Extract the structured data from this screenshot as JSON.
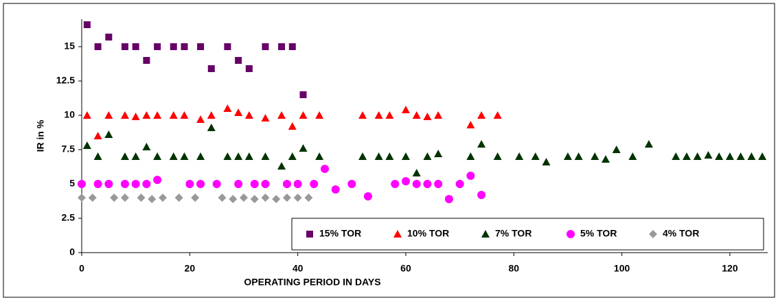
{
  "chart_data": {
    "type": "scatter",
    "xlabel": "OPERATING PERIOD IN DAYS",
    "ylabel": "IR in %",
    "xlim": [
      0,
      127
    ],
    "xticks": [
      0,
      20,
      40,
      60,
      80,
      100,
      120
    ],
    "ylim": [
      0,
      17
    ],
    "yticks": [
      0,
      2.5,
      5,
      7.5,
      10,
      12.5,
      15
    ],
    "grid": false,
    "legend": "lower right",
    "series": [
      {
        "name": "15% TOR",
        "color": "#660066",
        "marker": "square",
        "x": [
          1,
          3,
          5,
          8,
          10,
          12,
          14,
          17,
          19,
          22,
          24,
          27,
          29,
          31,
          34,
          37,
          39,
          41
        ],
        "values": [
          16.6,
          15,
          15.7,
          15,
          15,
          14,
          15,
          15,
          15,
          15,
          13.4,
          15,
          14,
          13.4,
          15,
          15,
          15,
          11.5
        ]
      },
      {
        "name": "10% TOR",
        "color": "#ff0000",
        "marker": "triangle",
        "x": [
          1,
          3,
          5,
          8,
          10,
          12,
          14,
          17,
          19,
          22,
          24,
          27,
          29,
          31,
          34,
          37,
          39,
          41,
          44,
          52,
          55,
          57,
          60,
          62,
          64,
          66,
          72,
          74,
          77
        ],
        "values": [
          10,
          8.5,
          10,
          10,
          9.9,
          10,
          10,
          10,
          10,
          9.7,
          10,
          10.5,
          10.2,
          10,
          9.8,
          10,
          9.2,
          10,
          10,
          10,
          10,
          10,
          10.4,
          10,
          9.9,
          10,
          9.3,
          10,
          10
        ]
      },
      {
        "name": "7% TOR",
        "color": "#003300",
        "marker": "triangle",
        "x": [
          1,
          3,
          5,
          8,
          10,
          12,
          14,
          17,
          19,
          22,
          24,
          27,
          29,
          31,
          34,
          37,
          39,
          41,
          44,
          52,
          55,
          57,
          60,
          62,
          64,
          66,
          72,
          74,
          77,
          81,
          84,
          86,
          90,
          92,
          95,
          97,
          99,
          102,
          105,
          110,
          112,
          114,
          116,
          118,
          120,
          122,
          124,
          126
        ],
        "values": [
          7.8,
          7,
          8.6,
          7,
          7,
          7.7,
          7,
          7,
          7,
          7,
          9.1,
          7,
          7,
          7,
          7,
          6.3,
          7,
          7.6,
          7,
          7,
          7,
          7,
          7,
          5.8,
          7,
          7.2,
          7,
          7.9,
          7,
          7,
          7,
          6.6,
          7,
          7,
          7,
          6.8,
          7.5,
          7,
          7.9,
          7,
          7,
          7,
          7.1,
          7,
          7,
          7,
          7,
          7
        ]
      },
      {
        "name": "5% TOR",
        "color": "#ff00ff",
        "marker": "circle",
        "x": [
          0,
          3,
          5,
          8,
          10,
          12,
          14,
          20,
          22,
          25,
          29,
          32,
          34,
          38,
          40,
          43,
          45,
          47,
          50,
          53,
          58,
          60,
          62,
          64,
          66,
          68,
          70,
          72,
          74
        ],
        "values": [
          5,
          5,
          5,
          5,
          5,
          5,
          5.3,
          5,
          5,
          5,
          5,
          5,
          5,
          5,
          5,
          5,
          6.1,
          4.6,
          5,
          4.1,
          5,
          5.2,
          5,
          5,
          5,
          3.9,
          5,
          5.6,
          4.2
        ]
      },
      {
        "name": "4% TOR",
        "color": "#999999",
        "marker": "diamond",
        "x": [
          0,
          2,
          6,
          8,
          11,
          13,
          15,
          18,
          21,
          26,
          28,
          30,
          32,
          34,
          36,
          38,
          40,
          42
        ],
        "values": [
          4,
          4,
          4,
          4,
          4,
          3.9,
          4,
          4,
          4,
          4,
          3.9,
          4,
          3.9,
          4,
          3.9,
          4,
          4,
          4
        ]
      }
    ]
  }
}
